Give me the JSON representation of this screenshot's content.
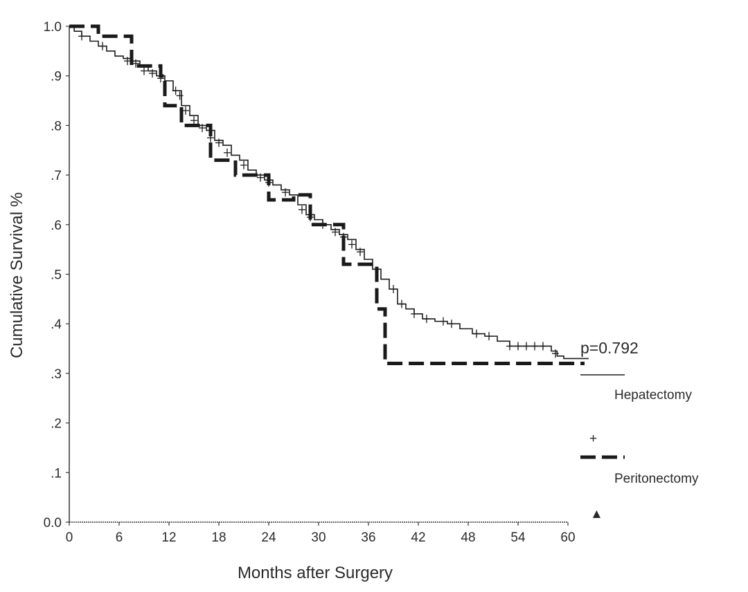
{
  "chart_data": {
    "type": "line",
    "xlabel": "Months after Surgery",
    "ylabel": "Cumulative Survival %",
    "xlim": [
      0,
      60
    ],
    "ylim": [
      0,
      1.0
    ],
    "x_ticks": [
      0,
      6,
      12,
      18,
      24,
      30,
      36,
      42,
      48,
      54,
      60
    ],
    "x_tick_labels": [
      "0",
      "6",
      "12",
      "18",
      "24",
      "30",
      "36",
      "42",
      "48",
      "54",
      "60"
    ],
    "y_ticks": [
      0,
      0.1,
      0.2,
      0.3,
      0.4,
      0.5,
      0.6,
      0.7,
      0.8,
      0.9,
      1.0
    ],
    "y_tick_labels": [
      "0.0",
      ".1",
      ".2",
      ".3",
      ".4",
      ".5",
      ".6",
      ".7",
      ".8",
      ".9",
      "1.0"
    ],
    "annotation": "p=0.792",
    "legend": {
      "placement": "right",
      "entries": [
        {
          "label": "Hepatectomy",
          "line": "solid",
          "censor_marker": "+"
        },
        {
          "label": "Peritonectomy",
          "line": "dashed",
          "censor_marker": "▲"
        }
      ]
    },
    "series": [
      {
        "name": "Hepatectomy",
        "style": "solid",
        "color": "#1a1a1a",
        "step_points": [
          [
            0,
            1.0
          ],
          [
            0.6,
            0.99
          ],
          [
            1.5,
            0.98
          ],
          [
            2.5,
            0.97
          ],
          [
            3.5,
            0.96
          ],
          [
            4.5,
            0.95
          ],
          [
            5.5,
            0.94
          ],
          [
            6.5,
            0.935
          ],
          [
            7.5,
            0.93
          ],
          [
            8.5,
            0.92
          ],
          [
            9.5,
            0.91
          ],
          [
            10.5,
            0.9
          ],
          [
            11.5,
            0.89
          ],
          [
            12.5,
            0.87
          ],
          [
            13.5,
            0.84
          ],
          [
            14.5,
            0.82
          ],
          [
            15.5,
            0.8
          ],
          [
            16.5,
            0.79
          ],
          [
            17.5,
            0.77
          ],
          [
            18.5,
            0.76
          ],
          [
            19.5,
            0.74
          ],
          [
            20.5,
            0.73
          ],
          [
            21.5,
            0.71
          ],
          [
            22.5,
            0.7
          ],
          [
            23.5,
            0.69
          ],
          [
            24.5,
            0.68
          ],
          [
            25.5,
            0.67
          ],
          [
            26.5,
            0.66
          ],
          [
            27.5,
            0.64
          ],
          [
            28.5,
            0.62
          ],
          [
            29.5,
            0.61
          ],
          [
            30.5,
            0.6
          ],
          [
            31.5,
            0.59
          ],
          [
            32.5,
            0.58
          ],
          [
            33.5,
            0.57
          ],
          [
            34.5,
            0.55
          ],
          [
            35.5,
            0.53
          ],
          [
            36.5,
            0.51
          ],
          [
            37.5,
            0.49
          ],
          [
            38.5,
            0.47
          ],
          [
            39.5,
            0.44
          ],
          [
            40.5,
            0.43
          ],
          [
            41.5,
            0.42
          ],
          [
            42.5,
            0.41
          ],
          [
            44,
            0.405
          ],
          [
            45.5,
            0.4
          ],
          [
            47,
            0.39
          ],
          [
            48.5,
            0.38
          ],
          [
            50,
            0.375
          ],
          [
            51.5,
            0.365
          ],
          [
            53,
            0.355
          ],
          [
            58,
            0.345
          ],
          [
            58.7,
            0.335
          ],
          [
            59.5,
            0.33
          ],
          [
            62.5,
            0.33
          ]
        ],
        "censor_times": [
          [
            1.5,
            0.98
          ],
          [
            4,
            0.96
          ],
          [
            7,
            0.93
          ],
          [
            8,
            0.925
          ],
          [
            9,
            0.91
          ],
          [
            10,
            0.905
          ],
          [
            11,
            0.895
          ],
          [
            12.8,
            0.87
          ],
          [
            13.3,
            0.86
          ],
          [
            14,
            0.83
          ],
          [
            15,
            0.81
          ],
          [
            16,
            0.795
          ],
          [
            17,
            0.775
          ],
          [
            18,
            0.765
          ],
          [
            19,
            0.745
          ],
          [
            21,
            0.72
          ],
          [
            23,
            0.695
          ],
          [
            24,
            0.685
          ],
          [
            26,
            0.665
          ],
          [
            28,
            0.63
          ],
          [
            29,
            0.615
          ],
          [
            30.5,
            0.6
          ],
          [
            32,
            0.585
          ],
          [
            33,
            0.575
          ],
          [
            34,
            0.56
          ],
          [
            35,
            0.545
          ],
          [
            39,
            0.47
          ],
          [
            40,
            0.44
          ],
          [
            41.5,
            0.42
          ],
          [
            43,
            0.41
          ],
          [
            45,
            0.405
          ],
          [
            46,
            0.4
          ],
          [
            49,
            0.38
          ],
          [
            50.5,
            0.375
          ],
          [
            53,
            0.355
          ],
          [
            54,
            0.355
          ],
          [
            55,
            0.355
          ],
          [
            56,
            0.355
          ],
          [
            57,
            0.355
          ],
          [
            58.5,
            0.34
          ]
        ]
      },
      {
        "name": "Peritonectomy",
        "style": "dashed",
        "color": "#1a1a1a",
        "step_points": [
          [
            0,
            1.0
          ],
          [
            3.5,
            0.98
          ],
          [
            7.5,
            0.92
          ],
          [
            11,
            0.9
          ],
          [
            11.5,
            0.84
          ],
          [
            13.5,
            0.8
          ],
          [
            17,
            0.73
          ],
          [
            20,
            0.7
          ],
          [
            24,
            0.65
          ],
          [
            27,
            0.66
          ],
          [
            29,
            0.6
          ],
          [
            33,
            0.52
          ],
          [
            37,
            0.43
          ],
          [
            38,
            0.32
          ],
          [
            62,
            0.32
          ]
        ]
      }
    ]
  }
}
